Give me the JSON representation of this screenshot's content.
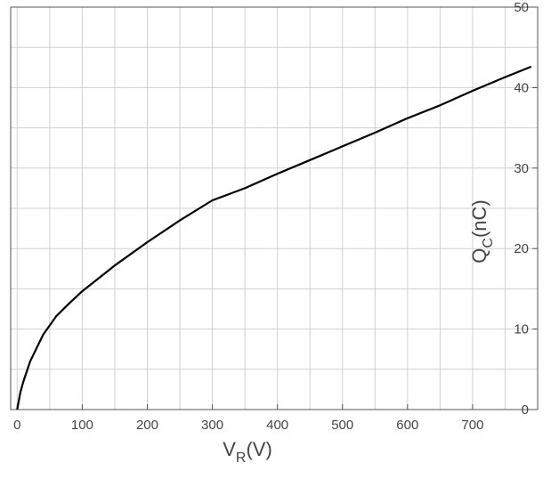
{
  "chart_data": {
    "type": "line",
    "title": "",
    "xlabel": "V_R(V)",
    "xlabel_main": "V",
    "xlabel_sub": "R",
    "xlabel_units": "(V)",
    "ylabel": "Q_C(nC)",
    "ylabel_main": "Q",
    "ylabel_sub": "C",
    "ylabel_units": "(nC)",
    "xlim": [
      -10,
      800
    ],
    "ylim": [
      0,
      50
    ],
    "x_ticks": [
      0,
      100,
      200,
      300,
      400,
      500,
      600,
      700
    ],
    "x_tick_labels": [
      "0",
      "100",
      "200",
      "300",
      "400",
      "500",
      "600",
      "700"
    ],
    "y_ticks": [
      0,
      10,
      20,
      30,
      40,
      50
    ],
    "y_tick_labels": [
      "0",
      "10",
      "20",
      "30",
      "40",
      "50"
    ],
    "grid": true,
    "series": [
      {
        "color": "#000000",
        "x": [
          0,
          5,
          10,
          20,
          40,
          60,
          80,
          100,
          150,
          200,
          250,
          300,
          350,
          400,
          450,
          500,
          550,
          600,
          650,
          700,
          750,
          790
        ],
        "y": [
          0,
          2.2,
          3.6,
          6.0,
          9.3,
          11.6,
          13.2,
          14.7,
          17.9,
          20.8,
          23.5,
          26.0,
          27.5,
          29.3,
          31.0,
          32.7,
          34.4,
          36.2,
          37.8,
          39.6,
          41.3,
          42.6
        ]
      }
    ]
  }
}
